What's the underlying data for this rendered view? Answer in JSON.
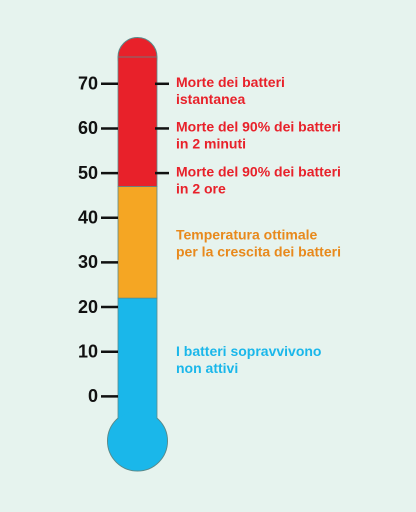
{
  "chart_data": {
    "type": "thermometer",
    "ylim": [
      -10,
      76
    ],
    "yticks": [
      0,
      10,
      20,
      30,
      40,
      50,
      60,
      70
    ],
    "segments": [
      {
        "range": [
          -10,
          22
        ],
        "color": "#1ab7ea"
      },
      {
        "range": [
          22,
          47
        ],
        "color": "#f5a623"
      },
      {
        "range": [
          47,
          76
        ],
        "color": "#e8212a"
      }
    ],
    "annotations": [
      {
        "lines": [
          "Morte dei batteri",
          "istantanea"
        ],
        "value": 70,
        "color": "#e8212a",
        "tick": true
      },
      {
        "lines": [
          "Morte del 90% dei batteri",
          "in 2 minuti"
        ],
        "value": 60,
        "color": "#e8212a",
        "tick": true
      },
      {
        "lines": [
          "Morte del 90% dei batteri",
          "in 2 ore"
        ],
        "value": 50,
        "color": "#e8212a",
        "tick": true
      },
      {
        "lines": [
          "Temperatura ottimale",
          "per la crescita dei batteri"
        ],
        "value": 34,
        "color": "#e8891c",
        "tick": false
      },
      {
        "lines": [
          "I batteri sopravvivono",
          "non attivi"
        ],
        "value": 8,
        "color": "#1ab7ea",
        "tick": false
      }
    ]
  }
}
